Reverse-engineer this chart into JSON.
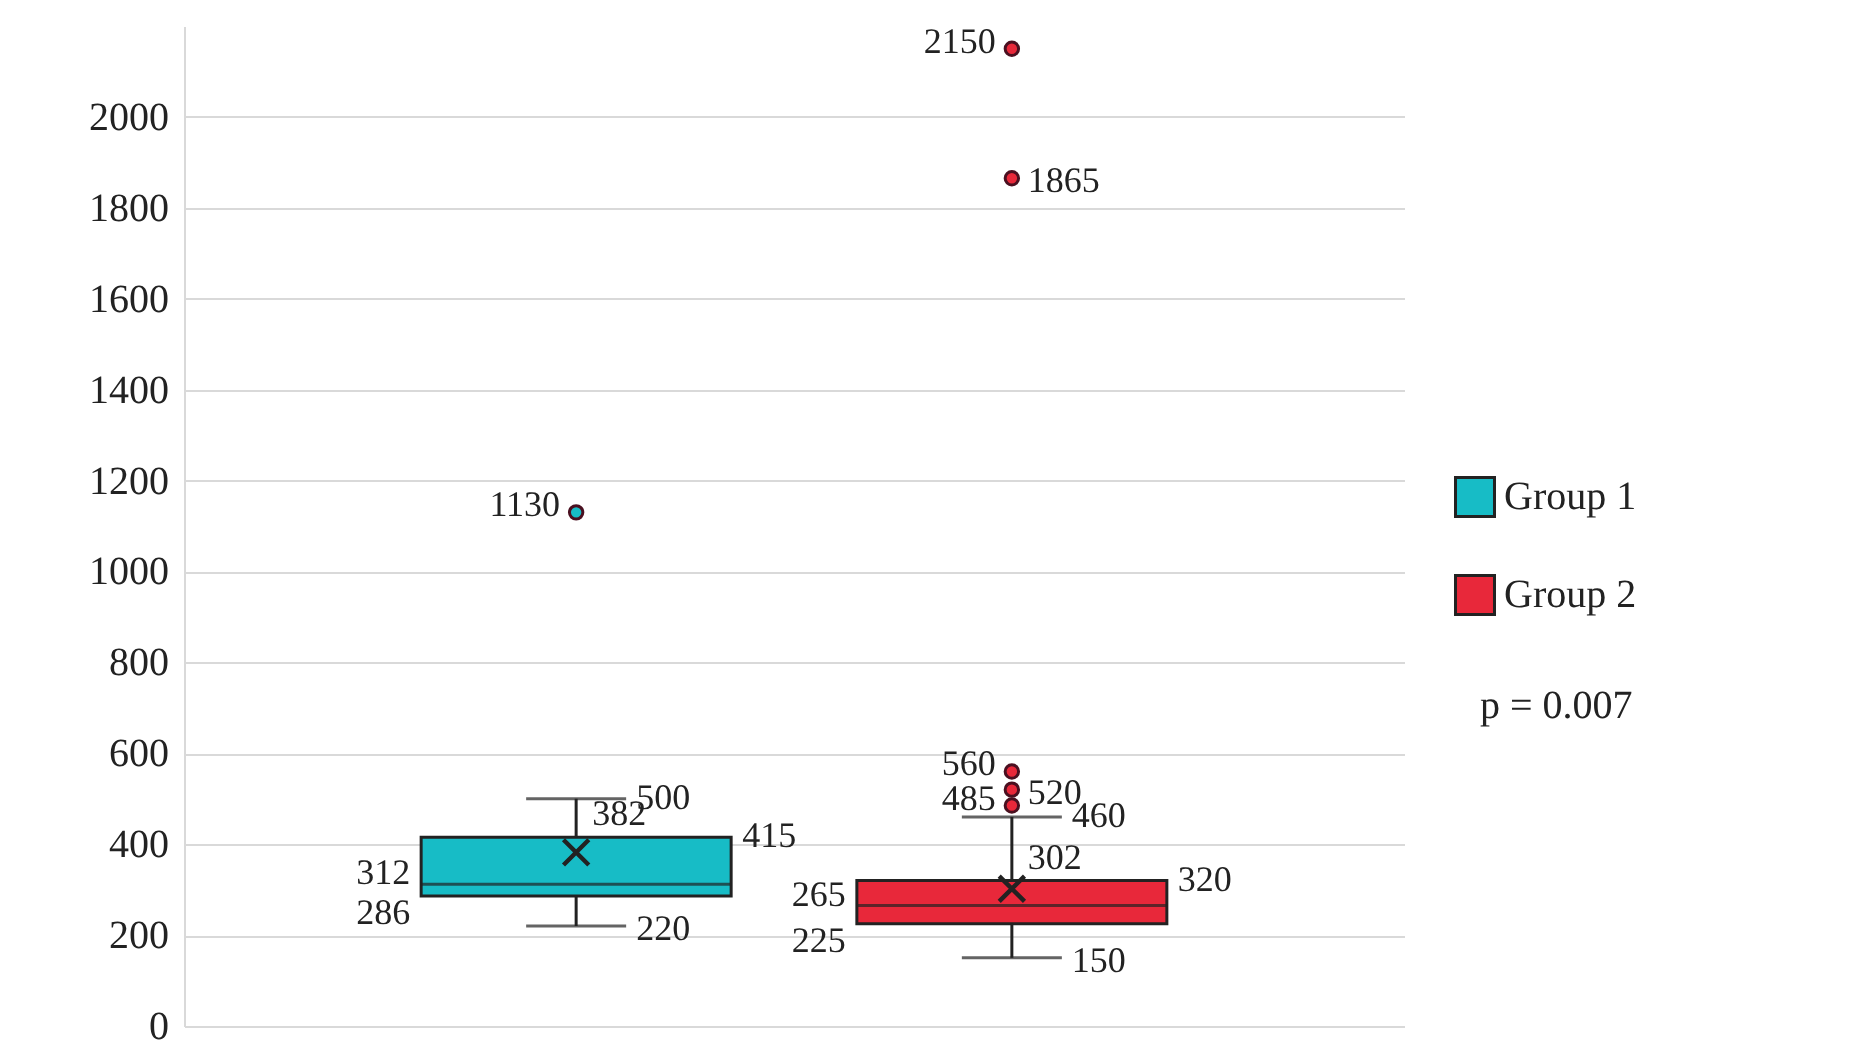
{
  "chart_data": {
    "type": "box",
    "categories": [
      null
    ],
    "series": [
      {
        "name": "Group 1",
        "color": "#17bcc6",
        "boxes": [
          {
            "low": 220,
            "q1": 286,
            "median": 312,
            "q3": 415,
            "high": 500,
            "mean": 382,
            "outliers": [
              1130
            ]
          }
        ]
      },
      {
        "name": "Group 2",
        "color": "#e8283a",
        "boxes": [
          {
            "low": 150,
            "q1": 225,
            "median": 265,
            "q3": 320,
            "high": 460,
            "mean": 302,
            "outliers": [
              485,
              520,
              560,
              1865,
              2150
            ]
          }
        ]
      }
    ],
    "ylim": [
      0,
      2200
    ],
    "yticks": [
      0,
      200,
      400,
      600,
      800,
      1000,
      1200,
      1400,
      1600,
      1800,
      2000
    ],
    "grid": "y",
    "legend": "right",
    "marker": "circle",
    "tick_labels": "y",
    "annotations": [
      "p = 0.007",
      "220",
      "286",
      "312",
      "415",
      "500",
      "382",
      "1130",
      "150",
      "225",
      "265",
      "320",
      "460",
      "302",
      "485",
      "520",
      "560",
      "1865",
      "2150"
    ]
  }
}
